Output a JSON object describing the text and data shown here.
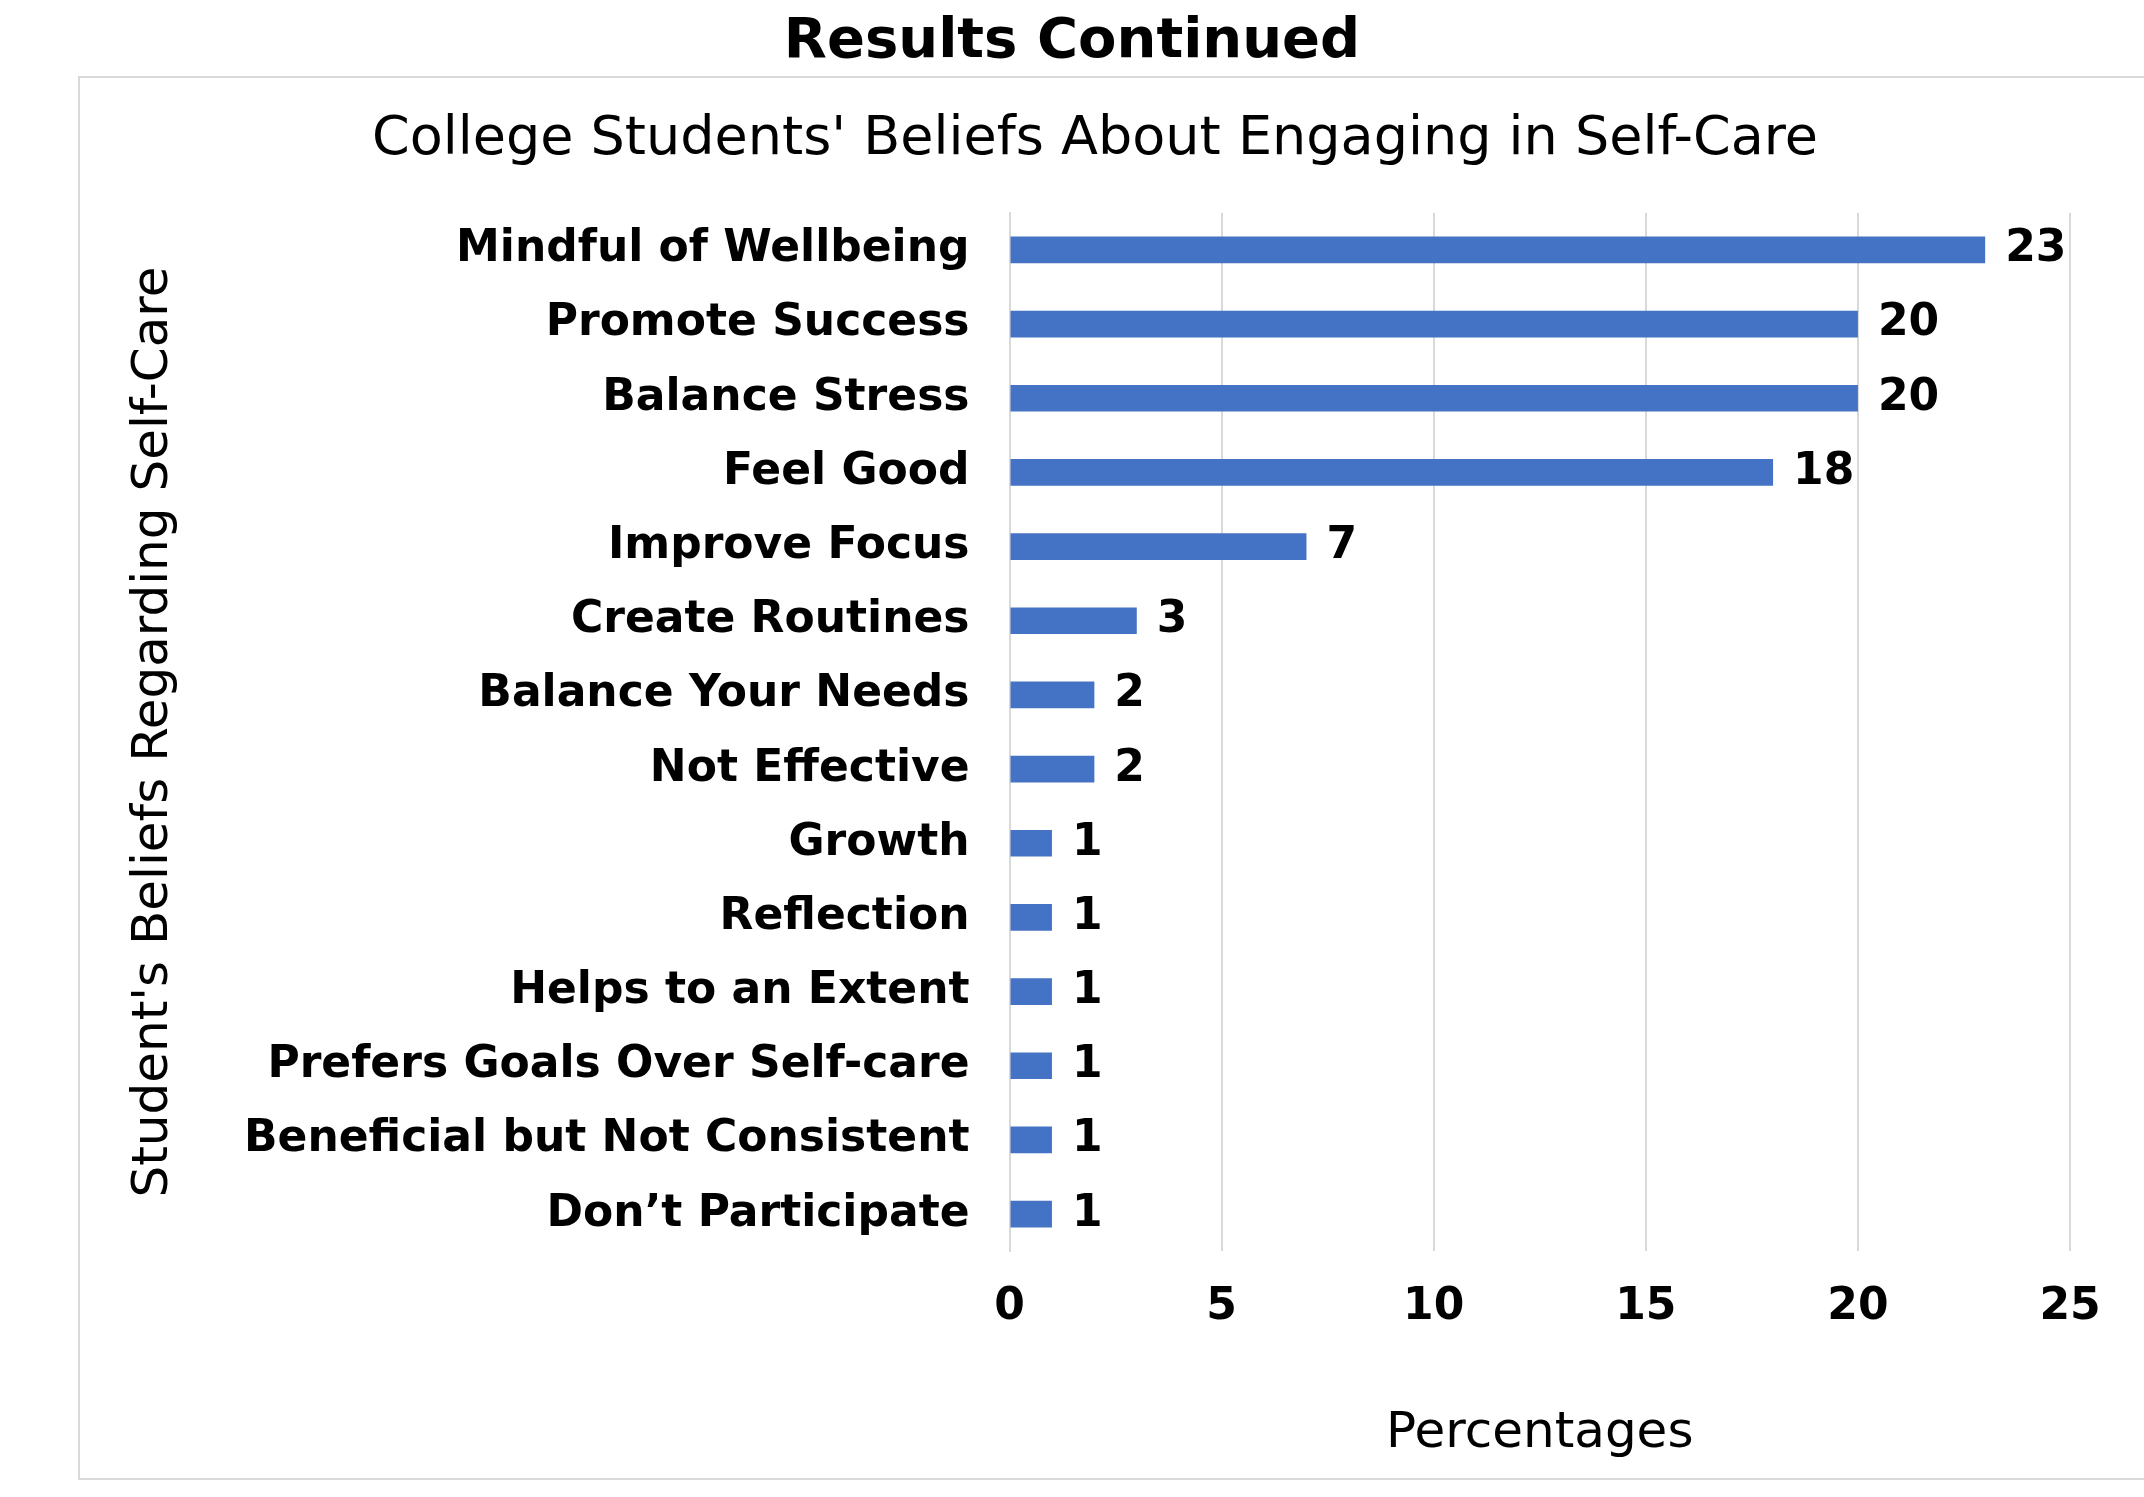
{
  "chart_data": {
    "type": "bar",
    "orientation": "horizontal",
    "title": "College Students' Beliefs About Engaging in Self-Care",
    "xlabel": "Percentages",
    "ylabel": "Student's Beliefs Regarding Self-Care",
    "annotations": [
      "Results Continued"
    ],
    "categories": [
      "Mindful of Wellbeing",
      "Promote Success",
      "Balance Stress",
      "Feel Good",
      "Improve Focus",
      "Create Routines",
      "Balance Your Needs",
      "Not Effective",
      "Growth",
      "Reflection",
      "Helps to an Extent",
      "Prefers Goals Over Self-care",
      "Beneficial but Not Consistent",
      "Don’t Participate"
    ],
    "values": [
      23,
      20,
      20,
      18,
      7,
      3,
      2,
      2,
      1,
      1,
      1,
      1,
      1,
      1
    ],
    "color": "#4472c4",
    "xlim": [
      0,
      25
    ],
    "xticks": [
      0,
      5,
      10,
      15,
      20,
      25
    ],
    "grid": "x",
    "data_labels": true,
    "legend": false
  }
}
